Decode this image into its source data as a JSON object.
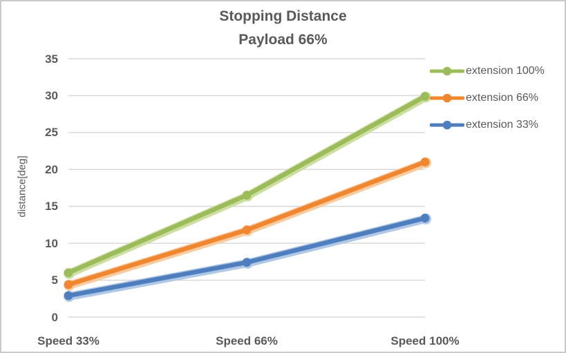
{
  "title": {
    "line1": "Stopping Distance",
    "line2": "Payload 66%"
  },
  "chart_data": {
    "type": "line",
    "categories": [
      "Speed 33%",
      "Speed 66%",
      "Speed 100%"
    ],
    "series": [
      {
        "name": "extension 100%",
        "color": "#9CBB59",
        "halo": "#CDDEA3",
        "values": [
          6.0,
          16.5,
          29.9
        ]
      },
      {
        "name": "extension 66%",
        "color": "#F0862F",
        "halo": "#F8CBA0",
        "values": [
          4.4,
          11.8,
          21.0
        ]
      },
      {
        "name": "extension 33%",
        "color": "#4E7EBD",
        "halo": "#AFC8E5",
        "values": [
          2.9,
          7.4,
          13.4
        ]
      }
    ],
    "ylabel": "distance[deg]",
    "ylim": [
      0,
      35
    ],
    "ytick_step": 5,
    "ytick_labels": [
      "0",
      "5",
      "10",
      "15",
      "20",
      "25",
      "30",
      "35"
    ],
    "grid": true,
    "legend_position": "right",
    "text_color": "#595959",
    "grid_color": "#D9D9D9"
  }
}
